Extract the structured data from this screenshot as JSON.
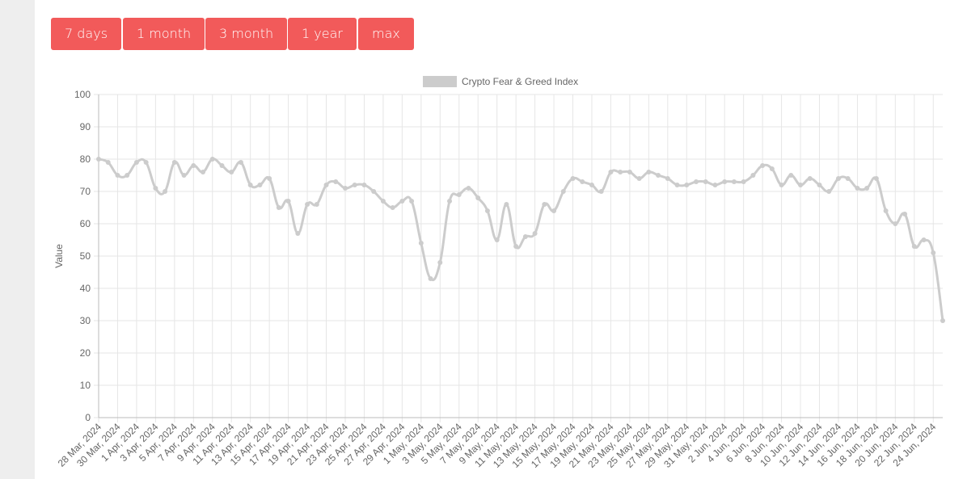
{
  "buttons": [
    "7 days",
    "1 month",
    "3 month",
    "1 year",
    "max"
  ],
  "chart_data": {
    "type": "line",
    "y_label": "Value",
    "legend": "top",
    "grid": true,
    "ylim": [
      0,
      100
    ],
    "yticks": [
      0,
      10,
      20,
      30,
      40,
      50,
      60,
      70,
      80,
      90,
      100
    ],
    "categories": [
      "28 Mar, 2024",
      null,
      "30 Mar, 2024",
      null,
      "1 Apr, 2024",
      null,
      "3 Apr, 2024",
      null,
      "5 Apr, 2024",
      null,
      "7 Apr, 2024",
      null,
      "9 Apr, 2024",
      null,
      "11 Apr, 2024",
      null,
      "13 Apr, 2024",
      null,
      "15 Apr, 2024",
      null,
      "17 Apr, 2024",
      null,
      "19 Apr, 2024",
      null,
      "21 Apr, 2024",
      null,
      "23 Apr, 2024",
      null,
      "25 Apr, 2024",
      null,
      "27 Apr, 2024",
      null,
      "29 Apr, 2024",
      null,
      "1 May, 2024",
      null,
      "3 May, 2024",
      null,
      "5 May, 2024",
      null,
      "7 May, 2024",
      null,
      "9 May, 2024",
      null,
      "11 May, 2024",
      null,
      "13 May, 2024",
      null,
      "15 May, 2024",
      null,
      "17 May, 2024",
      null,
      "19 May, 2024",
      null,
      "21 May, 2024",
      null,
      "23 May, 2024",
      null,
      "25 May, 2024",
      null,
      "27 May, 2024",
      null,
      "29 May, 2024",
      null,
      "31 May, 2024",
      null,
      "2 Jun, 2024",
      null,
      "4 Jun, 2024",
      null,
      "6 Jun, 2024",
      null,
      "8 Jun, 2024",
      null,
      "10 Jun, 2024",
      null,
      "12 Jun, 2024",
      null,
      "14 Jun, 2024",
      null,
      "16 Jun, 2024",
      null,
      "18 Jun, 2024",
      null,
      "20 Jun, 2024",
      null,
      "22 Jun, 2024",
      null,
      "24 Jun, 2024",
      null
    ],
    "series": [
      {
        "name": "Crypto Fear & Greed Index",
        "color": "#cccccc",
        "values": [
          80,
          79,
          75,
          75,
          79,
          79,
          71,
          70,
          79,
          75,
          78,
          76,
          80,
          78,
          76,
          79,
          72,
          72,
          74,
          65,
          67,
          57,
          66,
          66,
          72,
          73,
          71,
          72,
          72,
          70,
          67,
          65,
          67,
          67,
          54,
          43,
          48,
          67,
          69,
          71,
          68,
          64,
          55,
          66,
          53,
          56,
          57,
          66,
          64,
          70,
          74,
          73,
          72,
          70,
          76,
          76,
          76,
          74,
          76,
          75,
          74,
          72,
          72,
          73,
          73,
          72,
          73,
          73,
          73,
          75,
          78,
          77,
          72,
          75,
          72,
          74,
          72,
          70,
          74,
          74,
          71,
          71,
          74,
          64,
          60,
          63,
          53,
          55,
          51,
          30
        ]
      }
    ]
  }
}
